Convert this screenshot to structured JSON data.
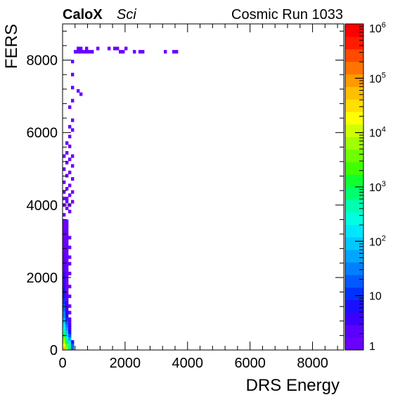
{
  "header": {
    "brand": "CaloX",
    "tag": "Sci",
    "run_label": "Cosmic Run 1033"
  },
  "chart_data": {
    "type": "heatmap",
    "xlabel": "DRS Energy",
    "ylabel": "FERS",
    "xlim": [
      0,
      9000
    ],
    "ylim": [
      0,
      9000
    ],
    "x_ticks": [
      "0",
      "2000",
      "4000",
      "6000",
      "8000"
    ],
    "y_ticks": [
      "0",
      "2000",
      "4000",
      "6000",
      "8000"
    ],
    "bin_size": [
      90,
      90
    ],
    "colorbar": {
      "scale": "log",
      "range": [
        1,
        1000000
      ],
      "labels": [
        {
          "base": "1",
          "exp": ""
        },
        {
          "base": "10",
          "exp": ""
        },
        {
          "base": "10",
          "exp": "2"
        },
        {
          "base": "10",
          "exp": "3"
        },
        {
          "base": "10",
          "exp": "4"
        },
        {
          "base": "10",
          "exp": "5"
        },
        {
          "base": "10",
          "exp": "6"
        }
      ],
      "palette": [
        "#6a00ff",
        "#5a00ff",
        "#3c00ff",
        "#1a10ff",
        "#0032ff",
        "#005aff",
        "#0080ff",
        "#00a6ff",
        "#00c8ff",
        "#00e6ff",
        "#00ffe0",
        "#00ffb0",
        "#00ff70",
        "#10ff30",
        "#40ff00",
        "#70ff00",
        "#a0ff00",
        "#d0ff00",
        "#ffff00",
        "#ffdf00",
        "#ffbe00",
        "#ff9a00",
        "#ff7400",
        "#ff4a00",
        "#ff1c00",
        "#ff0000"
      ]
    },
    "cells": [
      [
        0,
        0,
        50000
      ],
      [
        90,
        0,
        8000
      ],
      [
        180,
        0,
        800
      ],
      [
        270,
        0,
        20
      ],
      [
        0,
        90,
        20000
      ],
      [
        90,
        90,
        3000
      ],
      [
        180,
        90,
        400
      ],
      [
        270,
        90,
        15
      ],
      [
        0,
        180,
        8000
      ],
      [
        90,
        180,
        1200
      ],
      [
        180,
        180,
        150
      ],
      [
        270,
        180,
        5
      ],
      [
        0,
        270,
        3000
      ],
      [
        90,
        270,
        500
      ],
      [
        180,
        270,
        60
      ],
      [
        0,
        360,
        1000
      ],
      [
        90,
        360,
        200
      ],
      [
        180,
        360,
        20
      ],
      [
        0,
        450,
        500
      ],
      [
        90,
        450,
        90
      ],
      [
        180,
        450,
        8
      ],
      [
        0,
        540,
        250
      ],
      [
        90,
        540,
        45
      ],
      [
        180,
        540,
        4
      ],
      [
        0,
        630,
        150
      ],
      [
        90,
        630,
        25
      ],
      [
        180,
        630,
        3
      ],
      [
        0,
        720,
        90
      ],
      [
        90,
        720,
        15
      ],
      [
        180,
        720,
        2
      ],
      [
        0,
        810,
        60
      ],
      [
        90,
        810,
        10
      ],
      [
        180,
        810,
        2
      ],
      [
        0,
        900,
        40
      ],
      [
        90,
        900,
        7
      ],
      [
        0,
        990,
        30
      ],
      [
        90,
        990,
        5
      ],
      [
        180,
        990,
        1
      ],
      [
        0,
        1080,
        20
      ],
      [
        90,
        1080,
        4
      ],
      [
        0,
        1170,
        15
      ],
      [
        90,
        1170,
        3
      ],
      [
        180,
        1170,
        1
      ],
      [
        0,
        1260,
        12
      ],
      [
        90,
        1260,
        3
      ],
      [
        0,
        1350,
        10
      ],
      [
        90,
        1350,
        2
      ],
      [
        0,
        1440,
        8
      ],
      [
        90,
        1440,
        2
      ],
      [
        180,
        1440,
        1
      ],
      [
        0,
        1530,
        6
      ],
      [
        90,
        1530,
        2
      ],
      [
        0,
        1620,
        5
      ],
      [
        90,
        1620,
        1
      ],
      [
        0,
        1710,
        4
      ],
      [
        90,
        1710,
        1
      ],
      [
        180,
        1710,
        1
      ],
      [
        0,
        1800,
        4
      ],
      [
        90,
        1800,
        1
      ],
      [
        0,
        1890,
        3
      ],
      [
        90,
        1890,
        1
      ],
      [
        0,
        1980,
        3
      ],
      [
        90,
        1980,
        1
      ],
      [
        0,
        2070,
        3
      ],
      [
        90,
        2070,
        1
      ],
      [
        180,
        2070,
        1
      ],
      [
        0,
        2160,
        2
      ],
      [
        90,
        2160,
        1
      ],
      [
        0,
        2250,
        2
      ],
      [
        90,
        2250,
        1
      ],
      [
        0,
        2340,
        2
      ],
      [
        90,
        2340,
        1
      ],
      [
        180,
        2340,
        1
      ],
      [
        0,
        2430,
        2
      ],
      [
        90,
        2430,
        1
      ],
      [
        0,
        2520,
        2
      ],
      [
        90,
        2520,
        1
      ],
      [
        180,
        2520,
        1
      ],
      [
        0,
        2610,
        2
      ],
      [
        90,
        2610,
        1
      ],
      [
        0,
        2700,
        1
      ],
      [
        90,
        2700,
        1
      ],
      [
        0,
        2790,
        1
      ],
      [
        90,
        2790,
        1
      ],
      [
        180,
        2790,
        1
      ],
      [
        0,
        2880,
        1
      ],
      [
        90,
        2880,
        1
      ],
      [
        0,
        2970,
        1
      ],
      [
        90,
        2970,
        1
      ],
      [
        0,
        3060,
        1
      ],
      [
        90,
        3060,
        1
      ],
      [
        180,
        3060,
        1
      ],
      [
        0,
        3150,
        1
      ],
      [
        90,
        3150,
        1
      ],
      [
        0,
        3240,
        1
      ],
      [
        90,
        3240,
        1
      ],
      [
        0,
        3330,
        1
      ],
      [
        90,
        3330,
        1
      ],
      [
        0,
        3420,
        1
      ],
      [
        90,
        3420,
        1
      ],
      [
        0,
        3510,
        1
      ],
      [
        90,
        3510,
        1
      ],
      [
        0,
        3690,
        1
      ],
      [
        180,
        3780,
        1
      ],
      [
        90,
        3870,
        1
      ],
      [
        0,
        3960,
        1
      ],
      [
        180,
        3960,
        1
      ],
      [
        90,
        4050,
        1
      ],
      [
        270,
        4050,
        1
      ],
      [
        0,
        4140,
        1
      ],
      [
        90,
        4140,
        1
      ],
      [
        180,
        4230,
        1
      ],
      [
        0,
        4320,
        1
      ],
      [
        270,
        4320,
        1
      ],
      [
        90,
        4410,
        1
      ],
      [
        180,
        4500,
        1
      ],
      [
        0,
        4590,
        1
      ],
      [
        270,
        4680,
        1
      ],
      [
        90,
        4770,
        1
      ],
      [
        180,
        4860,
        1
      ],
      [
        0,
        4950,
        1
      ],
      [
        270,
        5040,
        1
      ],
      [
        90,
        5130,
        1
      ],
      [
        180,
        5220,
        1
      ],
      [
        0,
        5310,
        1
      ],
      [
        270,
        5310,
        1
      ],
      [
        90,
        5400,
        1
      ],
      [
        180,
        5580,
        1
      ],
      [
        90,
        5670,
        1
      ],
      [
        180,
        5850,
        1
      ],
      [
        270,
        6030,
        1
      ],
      [
        180,
        6120,
        1
      ],
      [
        270,
        6300,
        1
      ],
      [
        180,
        6660,
        1
      ],
      [
        270,
        6840,
        1
      ],
      [
        450,
        7110,
        1
      ],
      [
        540,
        7020,
        1
      ],
      [
        270,
        7200,
        1
      ],
      [
        270,
        7560,
        1
      ],
      [
        270,
        7920,
        1
      ],
      [
        360,
        8190,
        1
      ],
      [
        450,
        8190,
        1
      ],
      [
        540,
        8190,
        1
      ],
      [
        630,
        8190,
        1
      ],
      [
        720,
        8190,
        1
      ],
      [
        810,
        8190,
        1
      ],
      [
        900,
        8190,
        1
      ],
      [
        450,
        8280,
        1
      ],
      [
        540,
        8280,
        1
      ],
      [
        720,
        8280,
        1
      ],
      [
        1080,
        8280,
        1
      ],
      [
        1440,
        8280,
        1
      ],
      [
        1620,
        8280,
        1
      ],
      [
        1710,
        8280,
        1
      ],
      [
        1800,
        8190,
        1
      ],
      [
        1890,
        8190,
        1
      ],
      [
        1980,
        8280,
        1
      ],
      [
        2430,
        8190,
        1
      ],
      [
        2520,
        8190,
        1
      ],
      [
        2250,
        8190,
        1
      ],
      [
        3240,
        8190,
        1
      ],
      [
        3510,
        8190,
        1
      ],
      [
        3600,
        8190,
        1
      ]
    ]
  }
}
